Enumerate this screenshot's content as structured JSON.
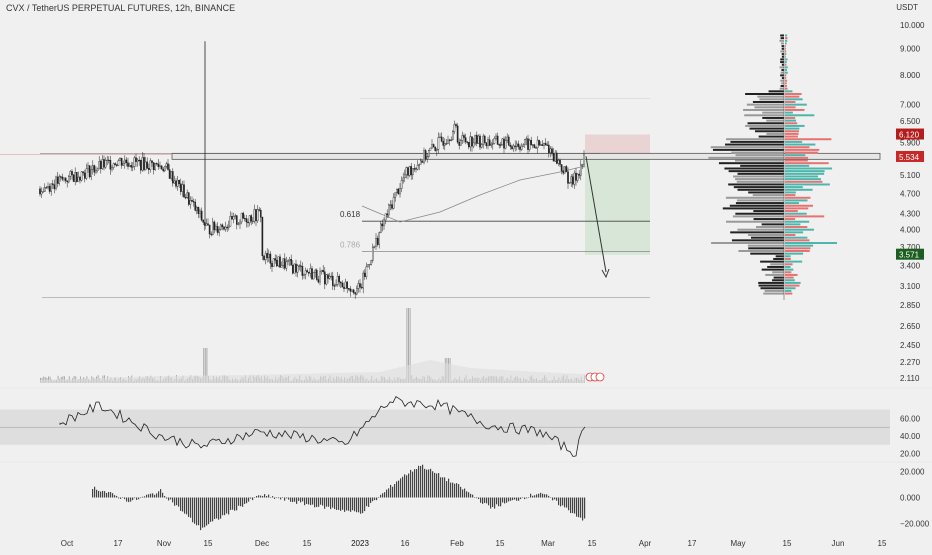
{
  "header": {
    "symbol_title": "CVX / TetherUS PERPETUAL FUTURES, 12h, BINANCE",
    "quote_currency": "USDT"
  },
  "chart_data": [
    {
      "type": "candlestick",
      "title": "CVX / TetherUS PERPETUAL FUTURES, 12h, BINANCE",
      "y_axis_labels": [
        "10.000",
        "9.000",
        "8.000",
        "7.000",
        "6.500",
        "5.900",
        "5.100",
        "4.700",
        "4.300",
        "4.000",
        "3.700",
        "3.400",
        "3.100",
        "2.850",
        "2.650",
        "2.450",
        "2.270",
        "2.110"
      ],
      "ylim": [
        2.85,
        10.0
      ],
      "y_scale": "log",
      "x_axis_labels": [
        "Oct",
        "17",
        "Nov",
        "15",
        "Dec",
        "15",
        "2023",
        "16",
        "Feb",
        "15",
        "Mar",
        "15",
        "Apr",
        "17",
        "May",
        "15",
        "Jun",
        "15"
      ],
      "price_markers": [
        {
          "label": "6.120",
          "color": "#b71c1c"
        },
        {
          "label": "5.534",
          "color": "#c62828"
        },
        {
          "label": "3.571",
          "color": "#1b5e20"
        }
      ],
      "close_path": [
        [
          "Oct",
          4.8
        ],
        [
          "17",
          5.45
        ],
        [
          "Nov",
          5.3
        ],
        [
          "15",
          4.0
        ],
        [
          "Dec",
          4.3
        ],
        [
          "15",
          3.8
        ],
        [
          "2023",
          3.05
        ],
        [
          "16",
          5.1
        ],
        [
          "Feb",
          6.3
        ],
        [
          "15",
          6.5
        ],
        [
          "Mar",
          5.8
        ],
        [
          "Mar",
          4.9
        ],
        [
          "Mar",
          5.5
        ]
      ],
      "fib_levels": [
        {
          "label": "0.618",
          "value": 4.15
        },
        {
          "label": "0.786",
          "value": 3.62
        }
      ],
      "zones": {
        "stop_zone": [
          5.53,
          6.12
        ],
        "target_zone": [
          3.57,
          5.53
        ],
        "resistance_band": 5.55
      },
      "grid": false,
      "legend": "none"
    },
    {
      "type": "bar",
      "name": "Volume",
      "y_axis_labels": []
    },
    {
      "type": "line",
      "name": "RSI",
      "y_axis_labels": [
        "60.00",
        "40.00",
        "20.00"
      ],
      "ylim": [
        15,
        90
      ],
      "band": [
        30,
        70
      ],
      "midline": 50
    },
    {
      "type": "bar",
      "name": "Oscillator",
      "y_axis_labels": [
        "20.000",
        "0.000",
        "−20.000"
      ],
      "ylim": [
        -25,
        25
      ]
    }
  ]
}
